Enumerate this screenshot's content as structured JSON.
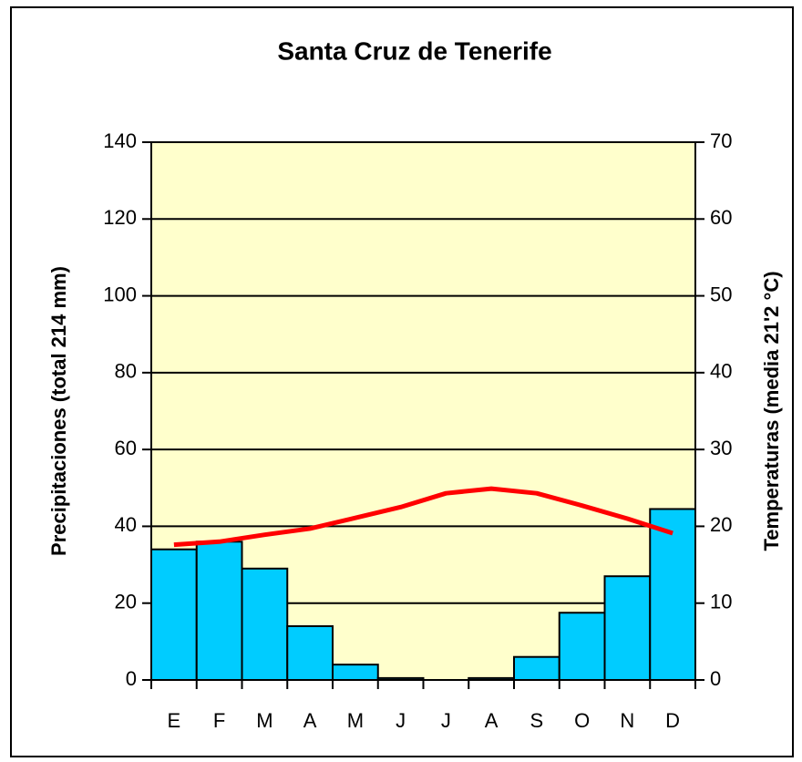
{
  "chart_data": {
    "type": "bar-line",
    "title": "Santa Cruz de Tenerife",
    "y_label": "Precipitaciones (total 214 mm)",
    "y2_label": "Temperaturas (media 21'2 °C)",
    "categories": [
      "E",
      "F",
      "M",
      "A",
      "M",
      "J",
      "J",
      "A",
      "S",
      "O",
      "N",
      "D"
    ],
    "series": [
      {
        "name": "Precipitaciones",
        "type": "bar",
        "color": "#00ccff",
        "values": [
          34,
          36,
          29,
          14,
          4,
          0.5,
          0,
          0.5,
          6,
          17.5,
          27,
          44.5
        ]
      },
      {
        "name": "Temperaturas",
        "type": "line",
        "axis": "y2",
        "color": "#ff0000",
        "values": [
          17.6,
          18,
          18.9,
          19.7,
          21.1,
          22.5,
          24.3,
          24.9,
          24.3,
          22.7,
          21,
          19.1
        ]
      }
    ],
    "ylim": [
      0,
      140
    ],
    "yticks": [
      0,
      20,
      40,
      60,
      80,
      100,
      120,
      140
    ],
    "y2lim": [
      0,
      70
    ],
    "y2ticks": [
      0,
      10,
      20,
      30,
      40,
      50,
      60,
      70
    ],
    "grid": true
  }
}
